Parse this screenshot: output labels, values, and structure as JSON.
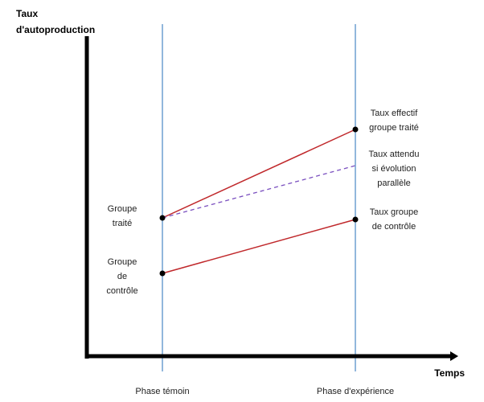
{
  "axes": {
    "y_label": [
      "Taux",
      "d'autoproduction"
    ],
    "x_label": "Temps"
  },
  "phases": [
    "Phase témoin",
    "Phase d'expérience"
  ],
  "left_labels": {
    "treated": [
      "Groupe",
      "traité"
    ],
    "control": [
      "Groupe",
      "de",
      "contrôle"
    ]
  },
  "right_labels": {
    "treated_actual": [
      "Taux effectif",
      "groupe traité"
    ],
    "expected": [
      "Taux attendu",
      "si évolution",
      "parallèle"
    ],
    "control": [
      "Taux groupe",
      "de contrôle"
    ]
  }
}
